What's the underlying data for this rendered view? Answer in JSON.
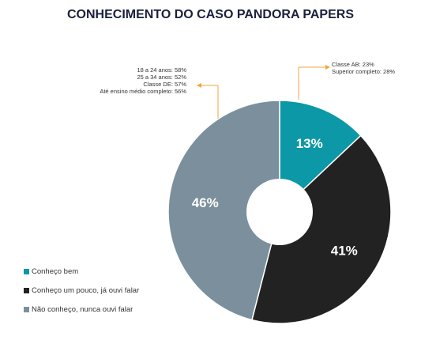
{
  "title": "CONHECIMENTO DO CASO PANDORA PAPERS",
  "colors": {
    "conheco_bem": "#0c98a6",
    "conheco_pouco": "#222222",
    "nao_conheco": "#7b909c",
    "callout": "#f2a43a",
    "title": "#1a1f3c"
  },
  "chart_data": {
    "type": "pie",
    "donut": true,
    "title": "CONHECIMENTO DO CASO PANDORA PAPERS",
    "slices": [
      {
        "label": "Conheço bem",
        "value": 13,
        "display": "13%",
        "color": "#0c98a6"
      },
      {
        "label": "Conheço um pouco, já ouvi falar",
        "value": 41,
        "display": "41%",
        "color": "#222222"
      },
      {
        "label": "Não conheço, nunca ouvi falar",
        "value": 46,
        "display": "46%",
        "color": "#7b909c"
      }
    ],
    "annotations": [
      {
        "slice": "Não conheço, nunca ouvi falar",
        "lines": [
          "18 a 24 anos: 58%",
          "25 a 34 anos: 52%",
          "Classe DE: 57%",
          "Até ensino médio completo: 56%"
        ]
      },
      {
        "slice": "Conheço bem",
        "lines": [
          "Classe AB: 23%",
          "Superior completo: 28%"
        ]
      }
    ],
    "legend_position": "bottom-left"
  },
  "legend": [
    {
      "label": "Conheço bem",
      "color": "#0c98a6"
    },
    {
      "label": "Conheço um pouco, já ouvi falar",
      "color": "#222222"
    },
    {
      "label": "Não conheço, nunca ouvi falar",
      "color": "#7b909c"
    }
  ],
  "notes": {
    "left": [
      "18 a 24 anos: 58%",
      "25 a 34 anos: 52%",
      "Classe DE: 57%",
      "Até ensino médio completo: 56%"
    ],
    "right": [
      "Classe AB: 23%",
      "Superior completo: 28%"
    ]
  }
}
